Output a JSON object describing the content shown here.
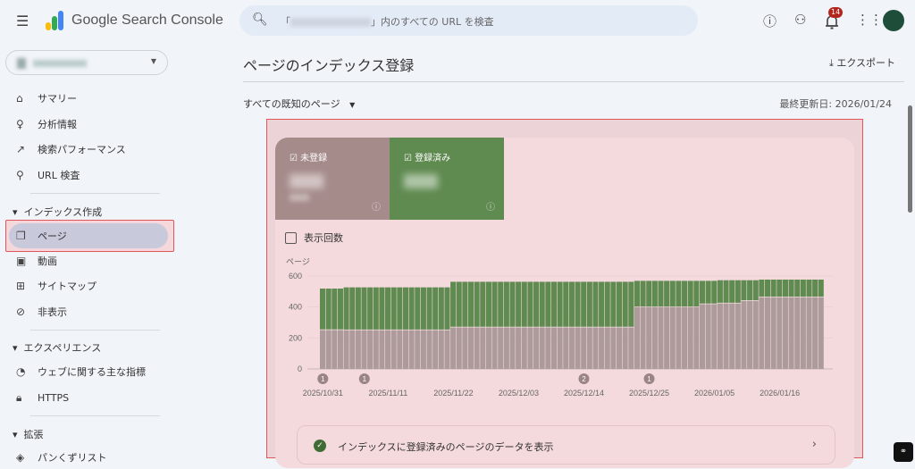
{
  "app": {
    "title": "Google Search Console"
  },
  "search": {
    "prefix": "「",
    "suffix": "」内のすべての URL を検査"
  },
  "header": {
    "notification_count": "14"
  },
  "sidebar": {
    "items": [
      {
        "label": "サマリー",
        "icon": "home-icon"
      },
      {
        "label": "分析情報",
        "icon": "lightbulb-icon"
      },
      {
        "label": "検索パフォーマンス",
        "icon": "trending-up-icon"
      },
      {
        "label": "URL 検査",
        "icon": "search-icon"
      }
    ],
    "sections": [
      {
        "title": "インデックス作成",
        "items": [
          {
            "label": "ページ",
            "icon": "pages-icon",
            "active": true
          },
          {
            "label": "動画",
            "icon": "video-icon"
          },
          {
            "label": "サイトマップ",
            "icon": "sitemap-icon"
          },
          {
            "label": "非表示",
            "icon": "hidden-icon"
          }
        ]
      },
      {
        "title": "エクスペリエンス",
        "items": [
          {
            "label": "ウェブに関する主な指標",
            "icon": "gauge-icon"
          },
          {
            "label": "HTTPS",
            "icon": "lock-icon"
          }
        ]
      },
      {
        "title": "拡張",
        "items": [
          {
            "label": "パンくずリスト",
            "icon": "layers-icon"
          }
        ]
      }
    ]
  },
  "main": {
    "title": "ページのインデックス登録",
    "export_label": "エクスポート",
    "filter_label": "すべての既知のページ",
    "last_updated": "最終更新日: 2026/01/24",
    "tiles": [
      {
        "label": "未登録",
        "color": "#a68b8b"
      },
      {
        "label": "登録済み",
        "color": "#5f8a50"
      }
    ],
    "impressions_label": "表示回数",
    "bottom_link": "インデックスに登録済みのページのデータを表示"
  },
  "chart_data": {
    "type": "bar",
    "stacked": true,
    "ylabel": "ページ",
    "ylim": [
      0,
      600
    ],
    "yticks": [
      0,
      200,
      400,
      600
    ],
    "xtick_labels": [
      "2025/10/31",
      "2025/11/11",
      "2025/11/22",
      "2025/12/03",
      "2025/12/14",
      "2025/12/25",
      "2026/01/05",
      "2026/01/16"
    ],
    "grid": true,
    "series_colors": {
      "not_indexed": "#ad9a9a",
      "indexed": "#5f8a50"
    },
    "segments": [
      {
        "from": "2025/10/31",
        "to": "2025/11/03",
        "not_indexed": 251,
        "indexed": 268
      },
      {
        "from": "2025/11/04",
        "to": "2025/11/21",
        "not_indexed": 250,
        "indexed": 277
      },
      {
        "from": "2025/11/22",
        "to": "2025/12/22",
        "not_indexed": 268,
        "indexed": 295
      },
      {
        "from": "2025/12/23",
        "to": "2026/01/02",
        "not_indexed": 398,
        "indexed": 171
      },
      {
        "from": "2026/01/03",
        "to": "2026/01/05",
        "not_indexed": 418,
        "indexed": 151
      },
      {
        "from": "2026/01/06",
        "to": "2026/01/09",
        "not_indexed": 423,
        "indexed": 150
      },
      {
        "from": "2026/01/10",
        "to": "2026/01/12",
        "not_indexed": 439,
        "indexed": 134
      },
      {
        "from": "2026/01/13",
        "to": "2026/01/23",
        "not_indexed": 462,
        "indexed": 115
      }
    ],
    "annotations": [
      {
        "date": "2025/10/31",
        "label": "1"
      },
      {
        "date": "2025/11/07",
        "label": "1"
      },
      {
        "date": "2025/12/14",
        "label": "2"
      },
      {
        "date": "2025/12/25",
        "label": "1"
      }
    ]
  }
}
